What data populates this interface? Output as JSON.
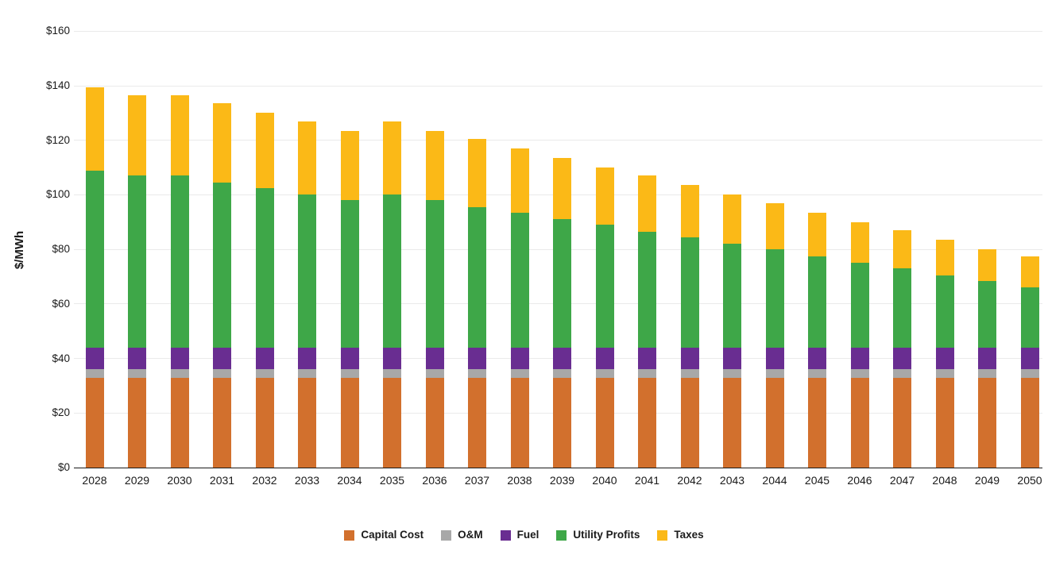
{
  "chart_data": {
    "type": "bar",
    "stacked": true,
    "title": "",
    "xlabel": "",
    "ylabel": "$/MWh",
    "ylim": [
      0,
      160
    ],
    "ytick_step": 20,
    "ytick_labels": [
      "$0",
      "$20",
      "$40",
      "$60",
      "$80",
      "$100",
      "$120",
      "$140",
      "$160"
    ],
    "grid": true,
    "legend_position": "bottom",
    "categories": [
      "2028",
      "2029",
      "2030",
      "2031",
      "2032",
      "2033",
      "2034",
      "2035",
      "2036",
      "2037",
      "2038",
      "2039",
      "2040",
      "2041",
      "2042",
      "2043",
      "2044",
      "2045",
      "2046",
      "2047",
      "2048",
      "2049",
      "2050"
    ],
    "series": [
      {
        "name": "Capital Cost",
        "color": "#D2702D",
        "values": [
          33,
          33,
          33,
          33,
          33,
          33,
          33,
          33,
          33,
          33,
          33,
          33,
          33,
          33,
          33,
          33,
          33,
          33,
          33,
          33,
          33,
          33,
          33
        ]
      },
      {
        "name": "O&M",
        "color": "#A8A8A8",
        "values": [
          3,
          3,
          3,
          3,
          3,
          3,
          3,
          3,
          3,
          3,
          3,
          3,
          3,
          3,
          3,
          3,
          3,
          3,
          3,
          3,
          3,
          3,
          3
        ]
      },
      {
        "name": "Fuel",
        "color": "#692D91",
        "values": [
          8,
          8,
          8,
          8,
          8,
          8,
          8,
          8,
          8,
          8,
          8,
          8,
          8,
          8,
          8,
          8,
          8,
          8,
          8,
          8,
          8,
          8,
          8
        ]
      },
      {
        "name": "Utility Profits",
        "color": "#3EA748",
        "values": [
          65,
          63,
          63,
          60.5,
          58.5,
          56,
          54,
          56,
          54,
          51.5,
          49.5,
          47,
          45,
          42.5,
          40.5,
          38,
          36,
          33.5,
          31,
          29,
          26.5,
          24.5,
          22
        ]
      },
      {
        "name": "Taxes",
        "color": "#FBB917",
        "values": [
          30.5,
          29.5,
          29.5,
          29,
          27.5,
          27,
          25.5,
          27,
          25.5,
          25,
          23.5,
          22.5,
          21,
          20.5,
          19,
          18,
          17,
          16,
          15,
          14,
          13,
          11.5,
          11.5
        ]
      }
    ]
  }
}
